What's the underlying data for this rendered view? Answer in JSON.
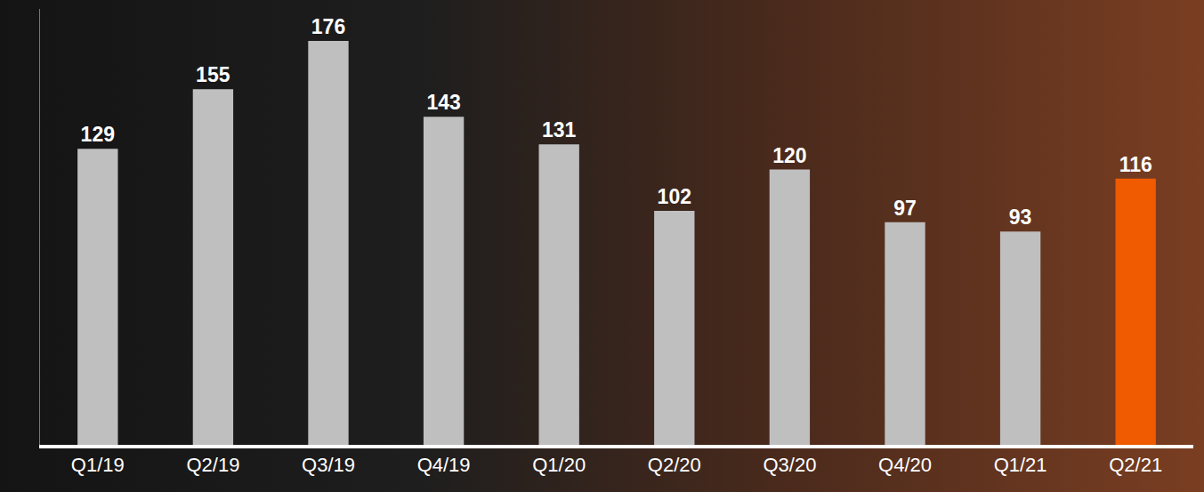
{
  "chart_data": {
    "type": "bar",
    "categories": [
      "Q1/19",
      "Q2/19",
      "Q3/19",
      "Q4/19",
      "Q1/20",
      "Q2/20",
      "Q3/20",
      "Q4/20",
      "Q1/21",
      "Q2/21"
    ],
    "values": [
      129,
      155,
      176,
      143,
      131,
      102,
      120,
      97,
      93,
      116
    ],
    "colors": [
      "#bfbfbf",
      "#bfbfbf",
      "#bfbfbf",
      "#bfbfbf",
      "#bfbfbf",
      "#bfbfbf",
      "#bfbfbf",
      "#bfbfbf",
      "#bfbfbf",
      "#f05a00"
    ],
    "ylim": [
      0,
      190
    ],
    "grid": false,
    "data_labels": true,
    "tick_labels": "x"
  }
}
